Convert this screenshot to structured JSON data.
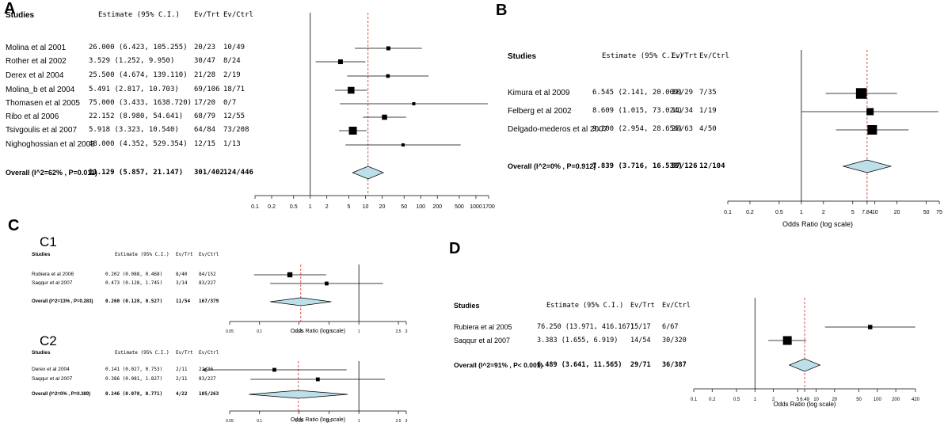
{
  "chart_data": [
    {
      "type": "forest",
      "panel_label": "A",
      "headers": {
        "studies": "Studies",
        "estimate": "Estimate (95% C.I.)",
        "ev_trt": "Ev/Trt",
        "ev_ctrl": "Ev/Ctrl"
      },
      "studies": [
        {
          "name": "Molina et al 2001",
          "est_text": "26.000 (6.423, 105.255)",
          "ev_trt": "20/23",
          "ev_ctrl": "10/49",
          "est": 26.0,
          "lo": 6.423,
          "hi": 105.255,
          "weight": 0.5
        },
        {
          "name": "Rother et al 2002",
          "est_text": "3.529 (1.252, 9.950)",
          "ev_trt": "30/47",
          "ev_ctrl": "8/24",
          "est": 3.529,
          "lo": 1.252,
          "hi": 9.95,
          "weight": 0.6
        },
        {
          "name": "Derex et al 2004",
          "est_text": "25.500 (4.674, 139.110)",
          "ev_trt": "21/28",
          "ev_ctrl": "2/19",
          "est": 25.5,
          "lo": 4.674,
          "hi": 139.11,
          "weight": 0.45
        },
        {
          "name": "Molina_b et al 2004",
          "est_text": "5.491 (2.817, 10.703)",
          "ev_trt": "69/106",
          "ev_ctrl": "18/71",
          "est": 5.491,
          "lo": 2.817,
          "hi": 10.703,
          "weight": 0.85
        },
        {
          "name": "Thomasen et al 2005",
          "est_text": "75.000 (3.433, 1638.720)",
          "ev_trt": "17/20",
          "ev_ctrl": "0/7",
          "est": 75.0,
          "lo": 3.433,
          "hi": 1638.72,
          "weight": 0.3
        },
        {
          "name": "Ribo et al 2006",
          "est_text": "22.152 (8.980, 54.641)",
          "ev_trt": "68/79",
          "ev_ctrl": "12/55",
          "est": 22.152,
          "lo": 8.98,
          "hi": 54.641,
          "weight": 0.65
        },
        {
          "name": "Tsivgoulis et al 2007",
          "est_text": "5.918 (3.323, 10.540)",
          "ev_trt": "64/84",
          "ev_ctrl": "73/208",
          "est": 5.918,
          "lo": 3.323,
          "hi": 10.54,
          "weight": 1.0
        },
        {
          "name": "Nighoghossian et al 2003",
          "est_text": "48.000 (4.352, 529.354)",
          "ev_trt": "12/15",
          "ev_ctrl": "1/13",
          "est": 48.0,
          "lo": 4.352,
          "hi": 529.354,
          "weight": 0.35
        }
      ],
      "overall": {
        "label": "Overall (I^2=62% , P=0.011)",
        "est_text": "11.129 (5.857, 21.147)",
        "ev_trt": "301/402",
        "ev_ctrl": "124/446",
        "est": 11.129,
        "lo": 5.857,
        "hi": 21.147
      },
      "ticks": [
        0.1,
        0.2,
        0.5,
        1,
        2,
        5,
        10,
        20,
        50,
        100,
        200,
        500,
        1000,
        1700
      ],
      "tick_labels": [
        "0.1",
        "0.2",
        "0.5",
        "1",
        "2",
        "5",
        "10",
        "20",
        "50",
        "100",
        "200",
        "500",
        "1000",
        "1700"
      ],
      "xlim": [
        0.1,
        1700
      ],
      "xlabel": ""
    },
    {
      "type": "forest",
      "panel_label": "B",
      "headers": {
        "studies": "Studies",
        "estimate": "Estimate (95% C.I.)",
        "ev_trt": "Ev/Trt",
        "ev_ctrl": "Ev/Ctrl"
      },
      "studies": [
        {
          "name": "Kimura et al 2009",
          "est_text": "6.545 (2.141, 20.009)",
          "ev_trt": "18/29",
          "ev_ctrl": "7/35",
          "est": 6.545,
          "lo": 2.141,
          "hi": 20.009,
          "weight": 0.9
        },
        {
          "name": "Felberg et al 2002",
          "est_text": "8.609 (1.015, 73.024)",
          "ev_trt": "11/34",
          "ev_ctrl": "1/19",
          "est": 8.609,
          "lo": 1.015,
          "hi": 73.024,
          "weight": 0.6
        },
        {
          "name": "Delgado-mederos et al 2007",
          "est_text": "9.200 (2.954, 28.656)",
          "ev_trt": "28/63",
          "ev_ctrl": "4/50",
          "est": 9.2,
          "lo": 2.954,
          "hi": 28.656,
          "weight": 0.8
        }
      ],
      "overall": {
        "label": "Overall (I^2=0% , P=0.912)",
        "est_text": "7.839 (3.716, 16.538)",
        "ev_trt": "57/126",
        "ev_ctrl": "12/104",
        "est": 7.839,
        "lo": 3.716,
        "hi": 16.538
      },
      "ticks": [
        0.1,
        0.2,
        0.5,
        1,
        2,
        5,
        7.84,
        10,
        20,
        50,
        75
      ],
      "tick_labels": [
        "0.1",
        "0.2",
        "0.5",
        "1",
        "2",
        "5",
        "7.84",
        "10",
        "20",
        "50",
        "75"
      ],
      "xlim": [
        0.1,
        75
      ],
      "xlabel": "Odds Ratio (log scale)"
    },
    {
      "type": "forest",
      "panel_label": "C",
      "sub_label": "C1",
      "headers": {
        "studies": "Studies",
        "estimate": "Estimate (95% C.I.)",
        "ev_trt": "Ev/Trt",
        "ev_ctrl": "Ev/Ctrl"
      },
      "studies": [
        {
          "name": "Rubiera et al 2006",
          "est_text": "0.202 (0.088, 0.468)",
          "ev_trt": "8/40",
          "ev_ctrl": "84/152",
          "est": 0.202,
          "lo": 0.088,
          "hi": 0.468,
          "weight": 0.8
        },
        {
          "name": "Saqqur et al 2007",
          "est_text": "0.473 (0.128, 1.745)",
          "ev_trt": "3/14",
          "ev_ctrl": "83/227",
          "est": 0.473,
          "lo": 0.128,
          "hi": 1.745,
          "weight": 0.6
        }
      ],
      "overall": {
        "label": "Overall (I^2=13% , P=0.283)",
        "est_text": "0.260 (0.128, 0.527)",
        "ev_trt": "11/54",
        "ev_ctrl": "167/379",
        "est": 0.26,
        "lo": 0.128,
        "hi": 0.527
      },
      "ticks": [
        0.05,
        0.1,
        0.25,
        0.5,
        1,
        2.5,
        3
      ],
      "tick_labels": [
        "0.05",
        "0.1",
        "0.25",
        "0.5",
        "1",
        "2.5",
        "3"
      ],
      "xlim": [
        0.05,
        3
      ],
      "xlabel": "Odds Ratio (log scale)"
    },
    {
      "type": "forest",
      "sub_label": "C2",
      "headers": {
        "studies": "Studies",
        "estimate": "Estimate (95% C.I.)",
        "ev_trt": "Ev/Trt",
        "ev_ctrl": "Ev/Ctrl"
      },
      "studies": [
        {
          "name": "Derex et al 2004",
          "est_text": "0.141 (0.027, 0.753)",
          "ev_trt": "2/11",
          "ev_ctrl": "22/36",
          "est": 0.141,
          "lo": 0.027,
          "hi": 0.753,
          "weight": 0.6,
          "arrow_left": true
        },
        {
          "name": "Saqqur et al 2007",
          "est_text": "0.386 (0.081, 1.827)",
          "ev_trt": "2/11",
          "ev_ctrl": "83/227",
          "est": 0.386,
          "lo": 0.081,
          "hi": 1.827,
          "weight": 0.6
        }
      ],
      "overall": {
        "label": "Overall (I^2=0% , P=0.389)",
        "est_text": "0.246 (0.078, 0.771)",
        "ev_trt": "4/22",
        "ev_ctrl": "105/263",
        "est": 0.246,
        "lo": 0.078,
        "hi": 0.771
      },
      "ticks": [
        0.05,
        0.1,
        0.25,
        0.5,
        1,
        2.5,
        3
      ],
      "tick_labels": [
        "0.05",
        "0.1",
        "0.25",
        "0.5",
        "1",
        "2.5",
        "3"
      ],
      "xlim": [
        0.05,
        3
      ],
      "xlabel": "Odds Ratio (log scale)"
    },
    {
      "type": "forest",
      "panel_label": "D",
      "headers": {
        "studies": "Studies",
        "estimate": "Estimate (95% C.I.)",
        "ev_trt": "Ev/Trt",
        "ev_ctrl": "Ev/Ctrl"
      },
      "studies": [
        {
          "name": "Rubiera et al 2005",
          "est_text": "76.250 (13.971, 416.167)",
          "ev_trt": "15/17",
          "ev_ctrl": "6/67",
          "est": 76.25,
          "lo": 13.971,
          "hi": 416.167,
          "weight": 0.5
        },
        {
          "name": "Saqqur et al 2007",
          "est_text": "3.383 (1.655, 6.919)",
          "ev_trt": "14/54",
          "ev_ctrl": "30/320",
          "est": 3.383,
          "lo": 1.655,
          "hi": 6.919,
          "weight": 1.0
        }
      ],
      "overall": {
        "label": "Overall (I^2=91% , P< 0.001)",
        "est_text": "6.489 (3.641, 11.565)",
        "ev_trt": "29/71",
        "ev_ctrl": "36/387",
        "est": 6.489,
        "lo": 3.641,
        "hi": 11.565
      },
      "ticks": [
        0.1,
        0.2,
        0.5,
        1,
        2,
        5,
        6.49,
        10,
        20,
        50,
        100,
        200,
        420
      ],
      "tick_labels": [
        "0.1",
        "0.2",
        "0.5",
        "1",
        "2",
        "5",
        "6.49",
        "10",
        "20",
        "50",
        "100",
        "200",
        "420"
      ],
      "xlim": [
        0.1,
        420
      ],
      "xlabel": "Odds Ratio (log scale)"
    }
  ],
  "colors": {
    "diamond_fill": "#bcdfe9",
    "ref_line": "#e04040",
    "ink": "#000000"
  }
}
